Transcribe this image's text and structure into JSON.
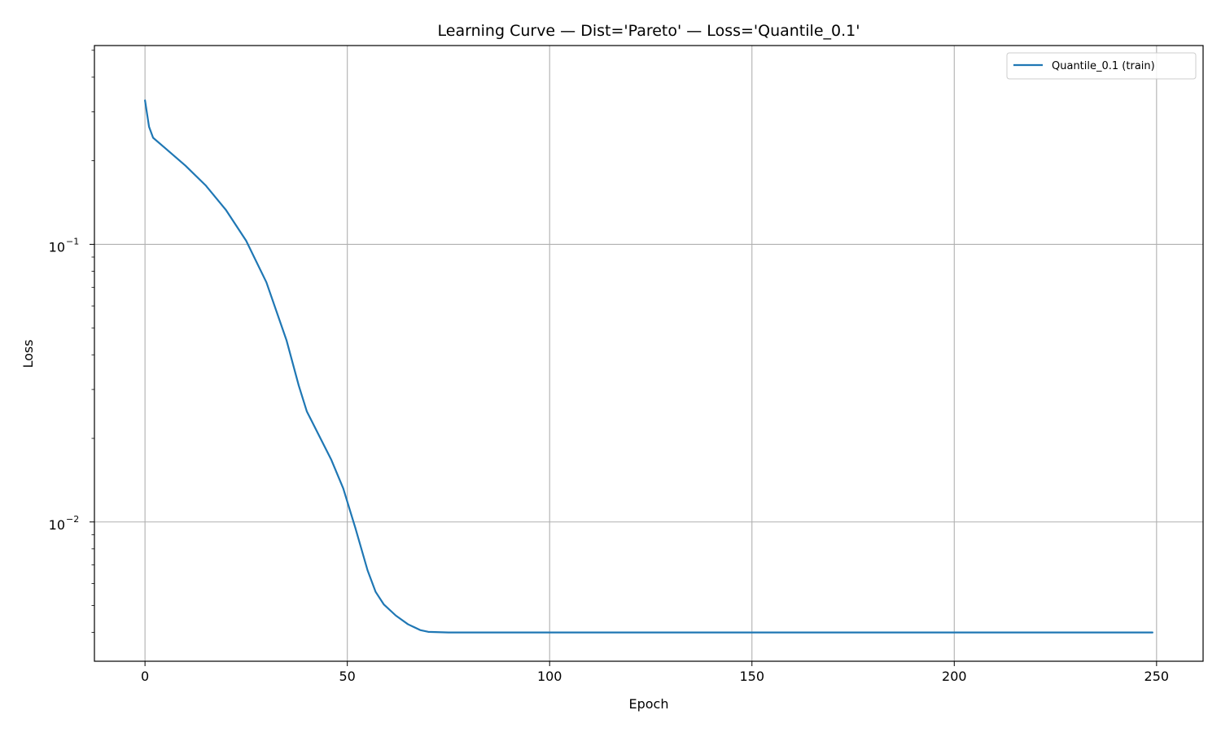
{
  "chart_data": {
    "type": "line",
    "title": "Learning Curve — Dist='Pareto' — Loss='Quantile_0.1'",
    "xlabel": "Epoch",
    "ylabel": "Loss",
    "yscale": "log",
    "xlim": [
      -12.5,
      261.5
    ],
    "ylim": [
      0.00315,
      0.52
    ],
    "xticks": [
      0,
      50,
      100,
      150,
      200,
      250
    ],
    "xtick_labels": [
      "0",
      "50",
      "100",
      "150",
      "200",
      "250"
    ],
    "yticks": [
      0.01,
      0.1
    ],
    "ytick_labels": [
      {
        "base": "10",
        "exp": "−2"
      },
      {
        "base": "10",
        "exp": "−1"
      }
    ],
    "grid": true,
    "legend_position": "top-right",
    "series": [
      {
        "name": "Quantile_0.1 (train)",
        "color": "#1f77b4",
        "points": [
          [
            0,
            0.33
          ],
          [
            1,
            0.265
          ],
          [
            2,
            0.242
          ],
          [
            5,
            0.222
          ],
          [
            10,
            0.192
          ],
          [
            15,
            0.163
          ],
          [
            20,
            0.133
          ],
          [
            25,
            0.103
          ],
          [
            30,
            0.073
          ],
          [
            35,
            0.045
          ],
          [
            38,
            0.031
          ],
          [
            40,
            0.025
          ],
          [
            43,
            0.0205
          ],
          [
            46,
            0.0168
          ],
          [
            49,
            0.0132
          ],
          [
            52,
            0.0095
          ],
          [
            55,
            0.0067
          ],
          [
            57,
            0.0056
          ],
          [
            59,
            0.00505
          ],
          [
            62,
            0.0046
          ],
          [
            65,
            0.00428
          ],
          [
            68,
            0.00408
          ],
          [
            70,
            0.00402
          ],
          [
            75,
            0.004
          ],
          [
            100,
            0.004
          ],
          [
            150,
            0.004
          ],
          [
            200,
            0.004
          ],
          [
            249,
            0.004
          ]
        ]
      }
    ]
  }
}
